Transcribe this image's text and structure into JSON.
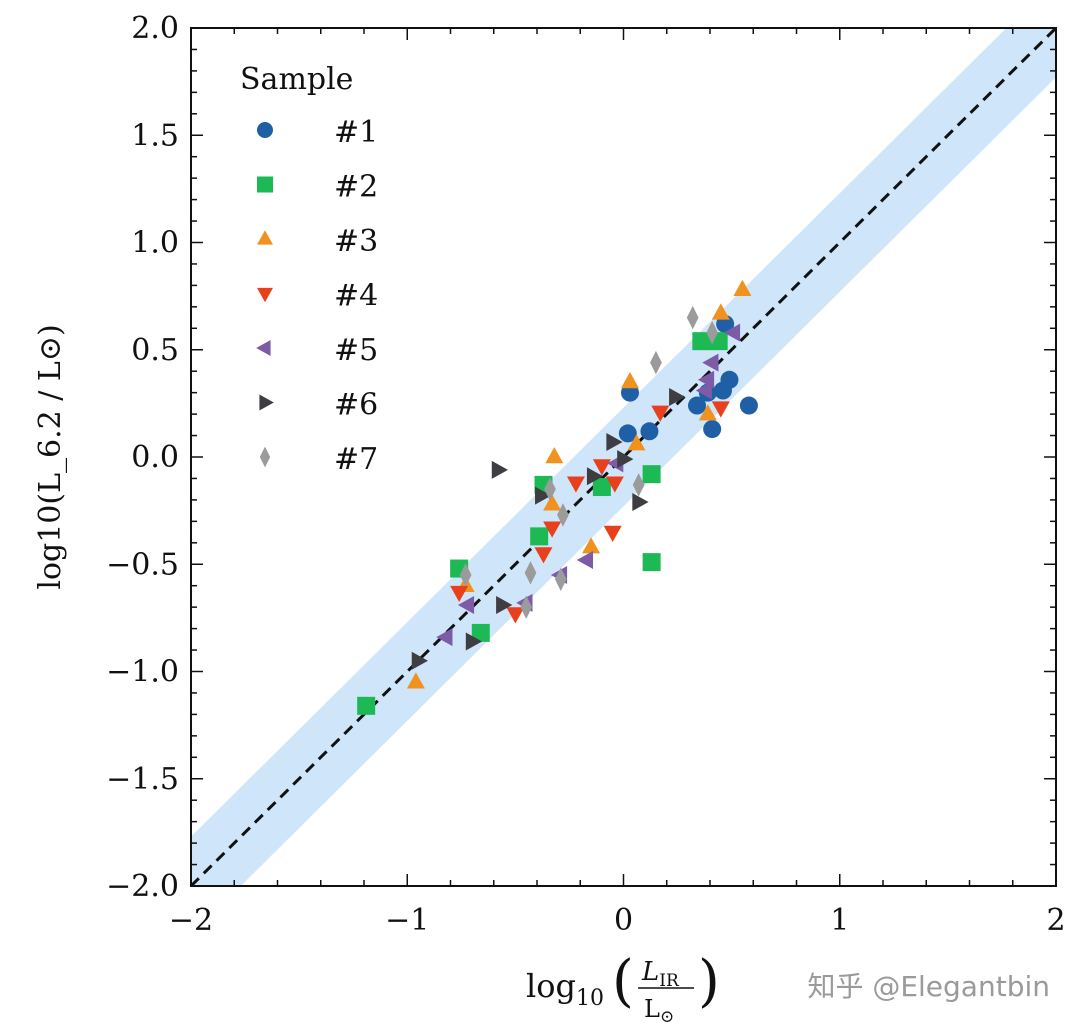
{
  "chart_data": {
    "type": "scatter",
    "xlabel": "log10(L_IR / L⊙)",
    "ylabel": "log10(L_6.2 / L⊙)",
    "xlim": [
      -2,
      2
    ],
    "ylim": [
      -2,
      2
    ],
    "xticks": [
      "−2",
      "−1",
      "0",
      "1",
      "2"
    ],
    "yticks": [
      "−2.0",
      "−1.5",
      "−1.0",
      "−0.5",
      "0.0",
      "0.5",
      "1.0",
      "1.5",
      "2.0"
    ],
    "grid": false,
    "legend": {
      "title": "Sample",
      "placement": "top-left"
    },
    "reference_line": {
      "slope": 1,
      "intercept": 0,
      "style": "dashed",
      "color": "#111111"
    },
    "band": {
      "half_width_dex": 0.23,
      "color": "#cfe5fa"
    },
    "series": [
      {
        "name": "#1",
        "marker": "circle",
        "color": "#1f5fa6",
        "points": [
          [
            0.03,
            0.3
          ],
          [
            0.02,
            0.11
          ],
          [
            0.12,
            0.12
          ],
          [
            0.34,
            0.24
          ],
          [
            0.39,
            0.3
          ],
          [
            0.46,
            0.31
          ],
          [
            0.49,
            0.36
          ],
          [
            0.41,
            0.13
          ],
          [
            0.58,
            0.24
          ],
          [
            0.47,
            0.62
          ]
        ]
      },
      {
        "name": "#2",
        "marker": "square",
        "color": "#1db954",
        "points": [
          [
            -1.19,
            -1.16
          ],
          [
            -0.76,
            -0.52
          ],
          [
            -0.66,
            -0.82
          ],
          [
            -0.39,
            -0.37
          ],
          [
            -0.37,
            -0.13
          ],
          [
            -0.1,
            -0.14
          ],
          [
            0.13,
            -0.08
          ],
          [
            0.13,
            -0.49
          ],
          [
            0.36,
            0.54
          ],
          [
            0.44,
            0.54
          ]
        ]
      },
      {
        "name": "#3",
        "marker": "triangle-up",
        "color": "#f0921e",
        "points": [
          [
            -0.96,
            -1.05
          ],
          [
            -0.32,
            0.0
          ],
          [
            -0.33,
            -0.22
          ],
          [
            -0.15,
            -0.42
          ],
          [
            0.06,
            0.06
          ],
          [
            0.03,
            0.35
          ],
          [
            0.39,
            0.2
          ],
          [
            0.45,
            0.67
          ],
          [
            0.55,
            0.78
          ],
          [
            -0.73,
            -0.6
          ]
        ]
      },
      {
        "name": "#4",
        "marker": "triangle-down",
        "color": "#e8401c",
        "points": [
          [
            -0.76,
            -0.63
          ],
          [
            -0.5,
            -0.73
          ],
          [
            -0.37,
            -0.45
          ],
          [
            -0.33,
            -0.33
          ],
          [
            -0.22,
            -0.12
          ],
          [
            -0.1,
            -0.04
          ],
          [
            -0.04,
            -0.12
          ],
          [
            -0.05,
            -0.35
          ],
          [
            0.17,
            0.21
          ],
          [
            0.45,
            0.23
          ]
        ]
      },
      {
        "name": "#5",
        "marker": "triangle-left",
        "color": "#7d5ba6",
        "points": [
          [
            -0.82,
            -0.84
          ],
          [
            -0.72,
            -0.69
          ],
          [
            -0.45,
            -0.68
          ],
          [
            -0.29,
            -0.55
          ],
          [
            -0.17,
            -0.48
          ],
          [
            -0.03,
            -0.03
          ],
          [
            0.41,
            0.44
          ],
          [
            0.39,
            0.36
          ],
          [
            0.38,
            0.31
          ],
          [
            0.51,
            0.58
          ]
        ]
      },
      {
        "name": "#6",
        "marker": "triangle-right",
        "color": "#3d3d42",
        "points": [
          [
            -0.95,
            -0.95
          ],
          [
            -0.7,
            -0.86
          ],
          [
            -0.56,
            -0.69
          ],
          [
            -0.58,
            -0.06
          ],
          [
            -0.38,
            -0.18
          ],
          [
            -0.14,
            -0.09
          ],
          [
            0.0,
            -0.01
          ],
          [
            -0.05,
            0.07
          ],
          [
            0.24,
            0.28
          ],
          [
            0.07,
            -0.21
          ]
        ]
      },
      {
        "name": "#7",
        "marker": "diamond",
        "color": "#9b9b9b",
        "points": [
          [
            -0.73,
            -0.55
          ],
          [
            -0.43,
            -0.54
          ],
          [
            -0.29,
            -0.57
          ],
          [
            -0.45,
            -0.7
          ],
          [
            -0.34,
            -0.15
          ],
          [
            -0.28,
            -0.27
          ],
          [
            0.07,
            -0.13
          ],
          [
            0.15,
            0.44
          ],
          [
            0.32,
            0.65
          ],
          [
            0.41,
            0.58
          ]
        ]
      }
    ]
  },
  "watermark": "知乎 @Elegantbin"
}
